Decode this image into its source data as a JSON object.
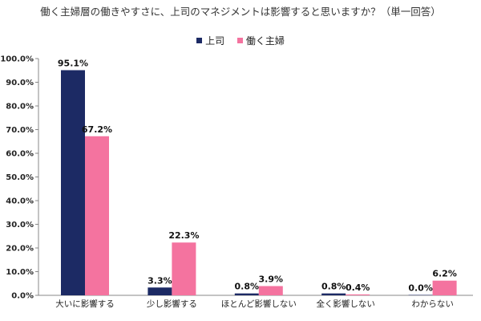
{
  "chart_data": {
    "type": "bar",
    "title": "働く主婦層の働きやすさに、上司のマネジメントは影響すると思いますか？（単一回答）",
    "categories": [
      "大いに影響する",
      "少し影響する",
      "ほとんど影響しない",
      "全く影響しない",
      "わからない"
    ],
    "series": [
      {
        "name": "上司",
        "color": "#1c2a64",
        "values": [
          95.1,
          3.3,
          0.8,
          0.8,
          0.0
        ],
        "labels": [
          "95.1%",
          "3.3%",
          "0.8%",
          "0.8%",
          "0.0%"
        ]
      },
      {
        "name": "働く主婦",
        "color": "#f4739f",
        "values": [
          67.2,
          22.3,
          3.9,
          0.4,
          6.2
        ],
        "labels": [
          "67.2%",
          "22.3%",
          "3.9%",
          "0.4%",
          "6.2%"
        ]
      }
    ],
    "ylim": [
      0,
      100
    ],
    "yticks": [
      "0.0%",
      "10.0%",
      "20.0%",
      "30.0%",
      "40.0%",
      "50.0%",
      "60.0%",
      "70.0%",
      "80.0%",
      "90.0%",
      "100.0%"
    ],
    "xlabel": "",
    "ylabel": "",
    "legend_position": "top-center",
    "grid": false
  }
}
